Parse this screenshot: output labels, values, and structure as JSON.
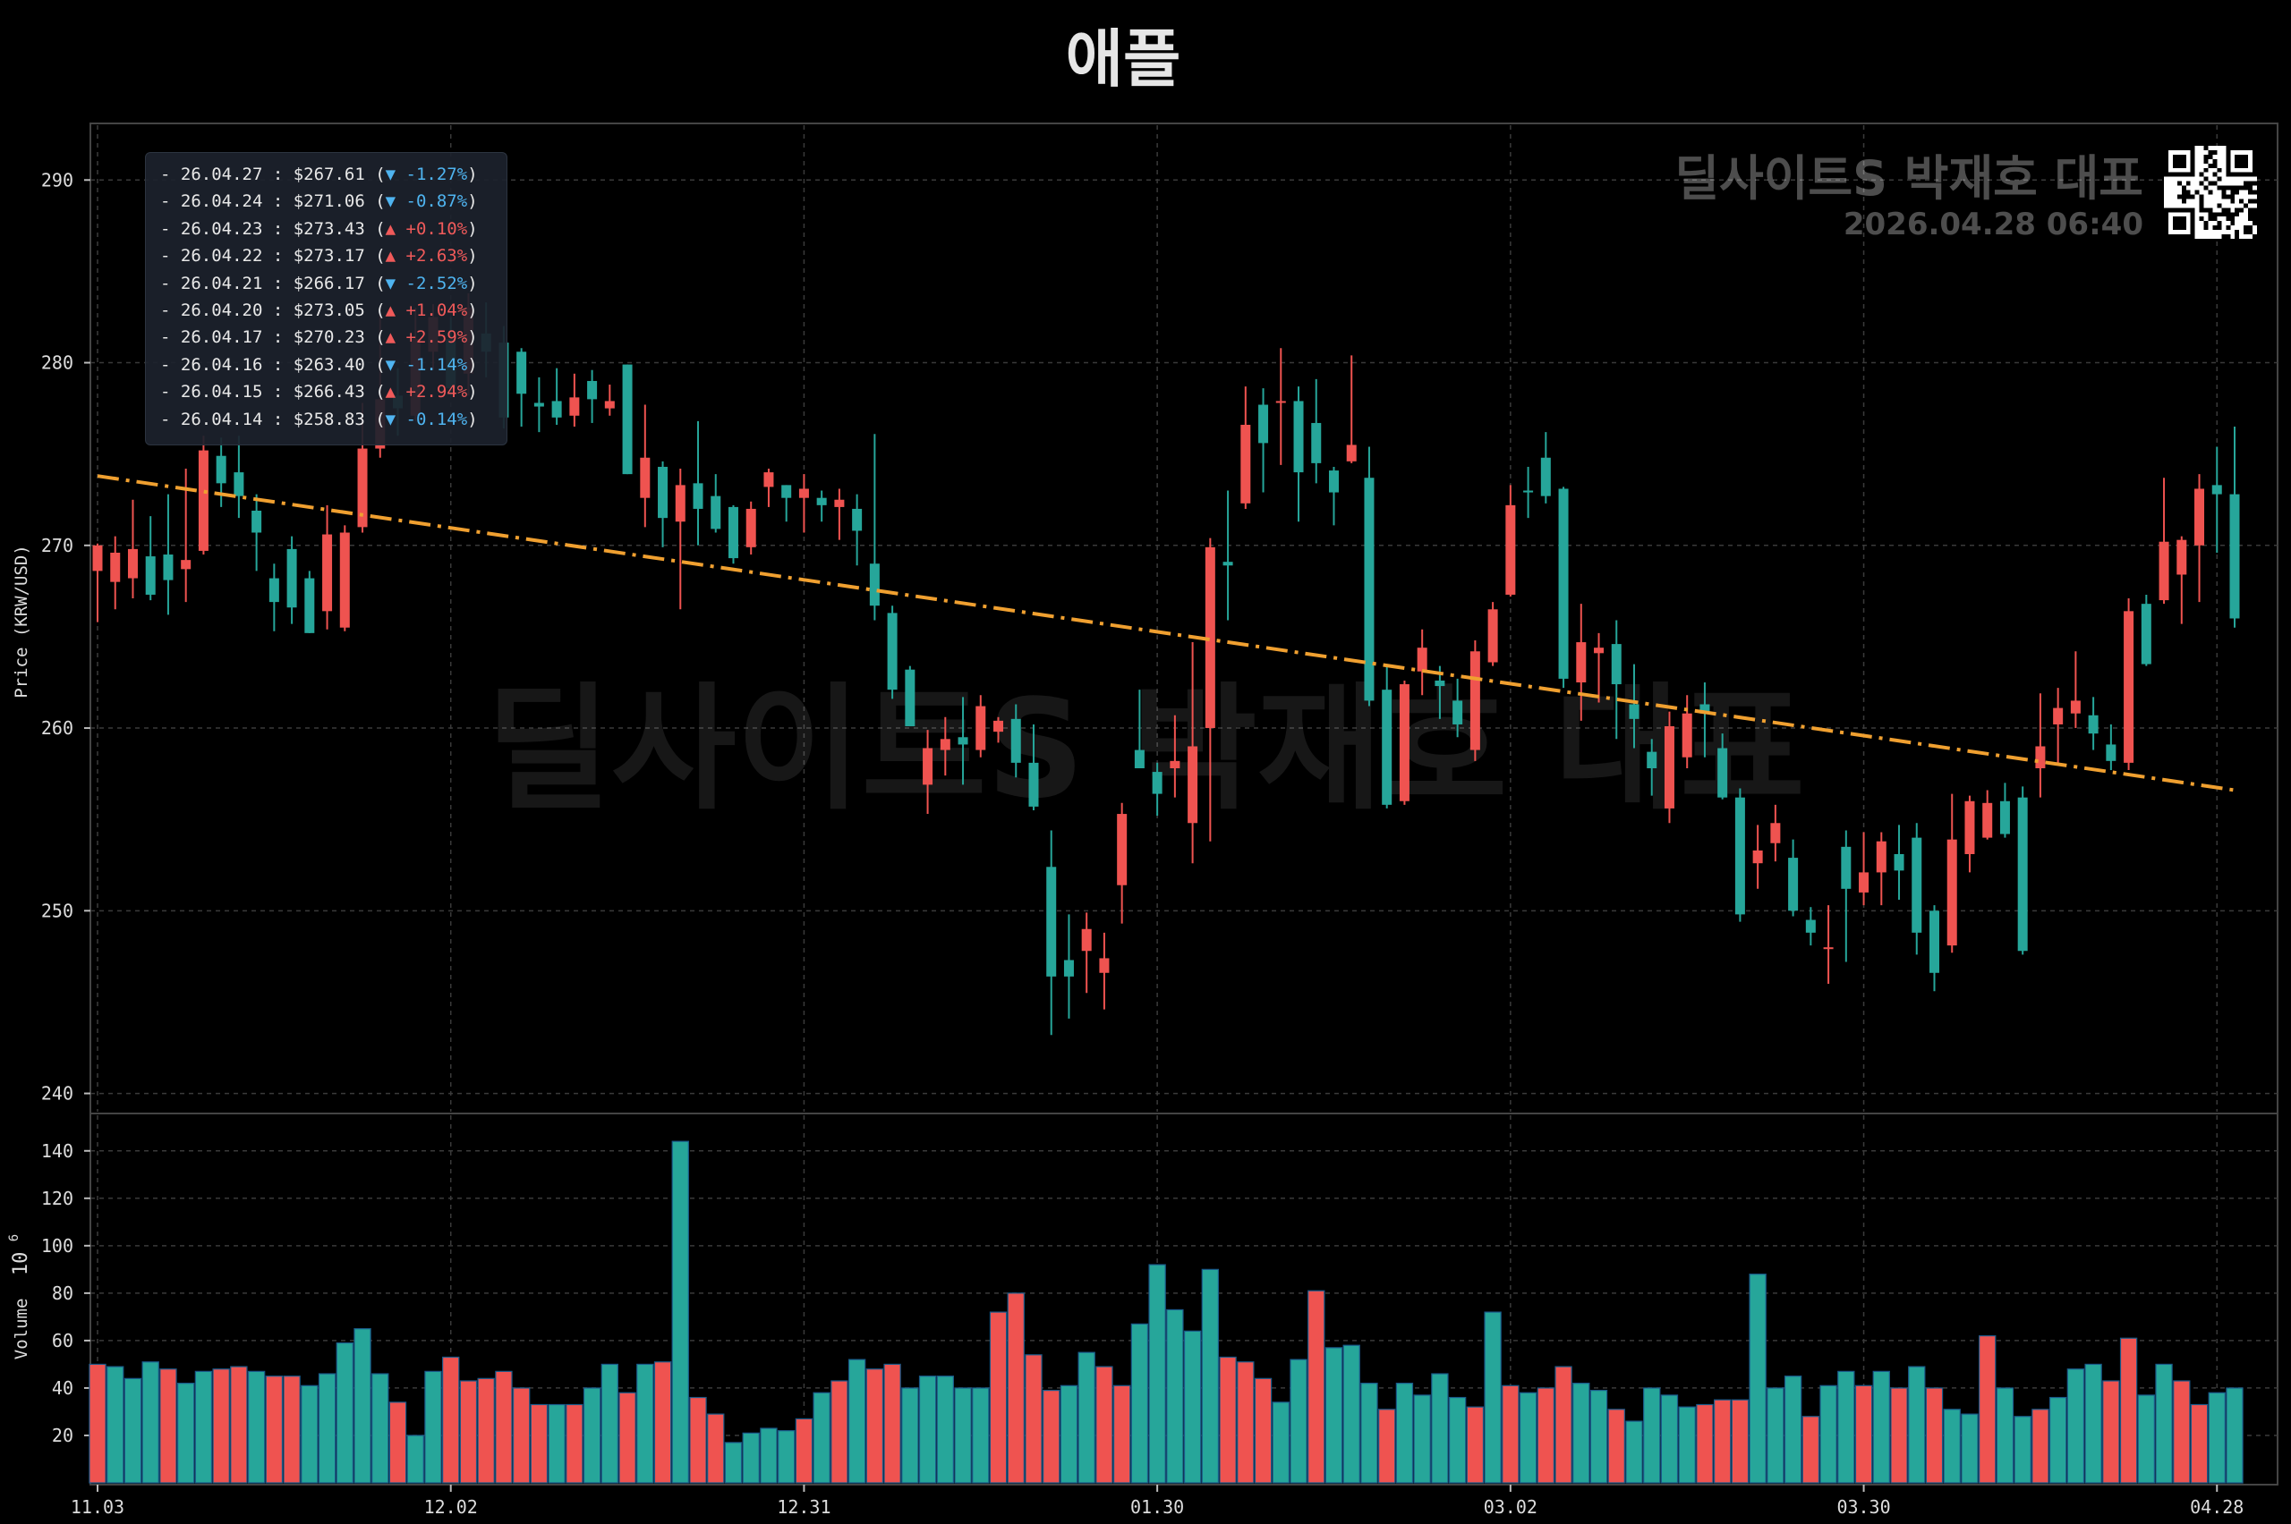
{
  "title": "애플",
  "watermark": {
    "center_text": "딜사이트S 박재호 대표",
    "corner_text": "딜사이트S 박재호 대표",
    "timestamp": "2026.04.28 06:40",
    "qr_icon": "qr-code-icon"
  },
  "colors": {
    "background": "#000000",
    "up": "#ef5350",
    "down": "#26a69a",
    "trend": "#f0a030",
    "grid": "#3a3a3a",
    "legend_up": "#f05a5a",
    "legend_down": "#4fb4f0"
  },
  "legend": [
    {
      "text": "- 26.04.27 : $267.61 (",
      "change": "▼ -1.27%",
      "dir": "down"
    },
    {
      "text": "- 26.04.24 : $271.06 (",
      "change": "▼ -0.87%",
      "dir": "down"
    },
    {
      "text": "- 26.04.23 : $273.43 (",
      "change": "▲ +0.10%",
      "dir": "up"
    },
    {
      "text": "- 26.04.22 : $273.17 (",
      "change": "▲ +2.63%",
      "dir": "up"
    },
    {
      "text": "- 26.04.21 : $266.17 (",
      "change": "▼ -2.52%",
      "dir": "down"
    },
    {
      "text": "- 26.04.20 : $273.05 (",
      "change": "▲ +1.04%",
      "dir": "up"
    },
    {
      "text": "- 26.04.17 : $270.23 (",
      "change": "▲ +2.59%",
      "dir": "up"
    },
    {
      "text": "- 26.04.16 : $263.40 (",
      "change": "▼ -1.14%",
      "dir": "down"
    },
    {
      "text": "- 26.04.15 : $266.43 (",
      "change": "▲ +2.94%",
      "dir": "up"
    },
    {
      "text": "- 26.04.14 : $258.83 (",
      "change": "▼ -0.14%",
      "dir": "down"
    }
  ],
  "chart_data": [
    {
      "type": "candlestick",
      "ylabel": "Price (KRW/USD)",
      "ylim": [
        239,
        293
      ],
      "yticks": [
        240,
        250,
        260,
        270,
        280,
        290
      ],
      "xtick_labels": [
        "11.03",
        "12.02",
        "12.31",
        "01.30",
        "03.02",
        "03.30",
        "04.28"
      ],
      "xtick_index": [
        0,
        20,
        40,
        60,
        80,
        100,
        120
      ],
      "trend_line": {
        "style": "dash-dot",
        "start": [
          0,
          273.8
        ],
        "end": [
          121,
          256.6
        ]
      },
      "grid": true,
      "candles": [
        [
          268.6,
          270.0,
          265.8,
          270.1
        ],
        [
          268.0,
          269.6,
          266.5,
          270.5
        ],
        [
          268.2,
          269.8,
          267.1,
          272.5
        ],
        [
          269.4,
          267.3,
          267.0,
          271.6
        ],
        [
          269.5,
          268.1,
          266.2,
          272.8
        ],
        [
          268.7,
          269.2,
          266.9,
          274.2
        ],
        [
          269.7,
          275.2,
          269.5,
          276.0
        ],
        [
          274.9,
          273.4,
          272.1,
          275.9
        ],
        [
          274.0,
          272.7,
          271.5,
          276.0
        ],
        [
          271.9,
          270.7,
          268.6,
          272.8
        ],
        [
          268.2,
          266.9,
          265.3,
          269.0
        ],
        [
          269.8,
          266.6,
          265.7,
          270.5
        ],
        [
          268.2,
          265.2,
          265.2,
          268.6
        ],
        [
          266.4,
          270.6,
          265.4,
          272.2
        ],
        [
          265.5,
          270.7,
          265.3,
          271.1
        ],
        [
          271.0,
          275.3,
          270.7,
          277.8
        ],
        [
          275.3,
          278.0,
          274.8,
          282.7
        ],
        [
          278.2,
          277.5,
          276.0,
          279.7
        ],
        [
          277.1,
          281.3,
          276.8,
          283.0
        ],
        [
          280.6,
          282.5,
          279.6,
          283.2
        ],
        [
          281.3,
          278.6,
          278.2,
          282.5
        ],
        [
          279.4,
          283.0,
          278.2,
          283.8
        ],
        [
          281.6,
          280.6,
          279.2,
          283.3
        ],
        [
          281.1,
          277.0,
          276.4,
          282.0
        ],
        [
          280.6,
          278.3,
          276.5,
          280.8
        ],
        [
          277.8,
          277.6,
          276.2,
          279.2
        ],
        [
          277.9,
          277.0,
          276.6,
          279.7
        ],
        [
          277.1,
          278.1,
          276.5,
          279.4
        ],
        [
          279.0,
          278.0,
          276.7,
          279.6
        ],
        [
          277.5,
          277.9,
          277.1,
          278.8
        ],
        [
          279.9,
          273.9,
          273.9,
          279.9
        ],
        [
          272.6,
          274.8,
          271.0,
          277.7
        ],
        [
          274.3,
          271.5,
          269.9,
          274.6
        ],
        [
          271.3,
          273.3,
          266.5,
          274.2
        ],
        [
          273.4,
          272.0,
          270.0,
          276.8
        ],
        [
          272.7,
          270.9,
          270.7,
          273.9
        ],
        [
          272.1,
          269.3,
          269.0,
          272.2
        ],
        [
          269.9,
          272.0,
          269.5,
          272.4
        ],
        [
          273.2,
          274.0,
          272.1,
          274.2
        ],
        [
          273.3,
          272.6,
          271.3,
          273.3
        ],
        [
          272.6,
          273.1,
          270.7,
          273.9
        ],
        [
          272.6,
          272.2,
          271.3,
          273.0
        ],
        [
          272.1,
          272.5,
          270.3,
          273.1
        ],
        [
          272.0,
          270.8,
          268.9,
          272.8
        ],
        [
          269.0,
          266.7,
          265.9,
          276.1
        ],
        [
          266.3,
          262.1,
          261.6,
          266.7
        ],
        [
          263.2,
          260.1,
          260.1,
          263.4
        ],
        [
          256.9,
          258.9,
          255.3,
          259.9
        ],
        [
          258.8,
          259.4,
          257.4,
          260.6
        ],
        [
          259.5,
          259.1,
          256.9,
          261.7
        ],
        [
          258.8,
          261.2,
          258.4,
          261.8
        ],
        [
          259.8,
          260.4,
          259.2,
          260.6
        ],
        [
          260.5,
          258.1,
          257.3,
          261.3
        ],
        [
          258.1,
          255.7,
          255.5,
          260.2
        ],
        [
          252.4,
          246.4,
          243.2,
          254.4
        ],
        [
          247.3,
          246.4,
          244.1,
          249.8
        ],
        [
          247.8,
          249.0,
          245.5,
          249.9
        ],
        [
          246.6,
          247.4,
          244.6,
          248.8
        ],
        [
          251.4,
          255.3,
          249.3,
          255.9
        ],
        [
          258.8,
          257.8,
          257.8,
          262.1
        ],
        [
          257.6,
          256.4,
          255.2,
          258.1
        ],
        [
          257.8,
          258.2,
          256.2,
          260.7
        ],
        [
          254.8,
          259.0,
          252.6,
          264.7
        ],
        [
          260.0,
          269.9,
          253.8,
          270.4
        ],
        [
          269.1,
          268.9,
          265.9,
          273.0
        ],
        [
          272.3,
          276.6,
          272.0,
          278.7
        ],
        [
          277.7,
          275.6,
          272.9,
          278.6
        ],
        [
          277.8,
          277.9,
          274.4,
          280.8
        ],
        [
          277.9,
          274.0,
          271.3,
          278.7
        ],
        [
          276.7,
          274.5,
          273.4,
          279.1
        ],
        [
          274.1,
          272.9,
          271.1,
          274.3
        ],
        [
          274.6,
          275.5,
          274.5,
          280.4
        ],
        [
          273.7,
          261.5,
          261.2,
          275.4
        ],
        [
          262.1,
          255.8,
          255.6,
          263.4
        ],
        [
          256.0,
          262.4,
          255.8,
          262.6
        ],
        [
          263.1,
          264.4,
          261.8,
          265.4
        ],
        [
          262.6,
          262.3,
          260.5,
          263.4
        ],
        [
          261.5,
          260.2,
          259.5,
          262.7
        ],
        [
          258.8,
          264.2,
          258.2,
          264.8
        ],
        [
          263.6,
          266.5,
          263.4,
          266.9
        ],
        [
          267.3,
          272.2,
          267.2,
          273.3
        ],
        [
          273.0,
          272.9,
          271.5,
          274.3
        ],
        [
          274.8,
          272.7,
          272.3,
          276.2
        ],
        [
          273.1,
          262.7,
          262.2,
          273.2
        ],
        [
          262.5,
          264.7,
          260.4,
          266.8
        ],
        [
          264.1,
          264.4,
          261.4,
          265.2
        ],
        [
          264.6,
          262.4,
          259.4,
          265.9
        ],
        [
          261.3,
          260.5,
          258.9,
          263.5
        ],
        [
          258.7,
          257.8,
          256.3,
          259.4
        ],
        [
          255.6,
          260.1,
          254.8,
          260.9
        ],
        [
          258.4,
          260.8,
          257.8,
          261.8
        ],
        [
          261.3,
          260.8,
          258.4,
          262.5
        ],
        [
          258.9,
          256.2,
          256.1,
          259.7
        ],
        [
          256.2,
          249.8,
          249.4,
          256.7
        ],
        [
          252.6,
          253.3,
          251.2,
          254.7
        ],
        [
          253.7,
          254.8,
          252.7,
          255.8
        ],
        [
          252.9,
          250.0,
          249.7,
          253.9
        ],
        [
          249.5,
          248.8,
          248.1,
          250.2
        ],
        [
          247.9,
          248.0,
          246.0,
          250.3
        ],
        [
          253.5,
          251.2,
          247.2,
          254.4
        ],
        [
          251.0,
          252.1,
          250.3,
          254.3
        ],
        [
          252.1,
          253.8,
          250.3,
          254.3
        ],
        [
          253.1,
          252.2,
          250.6,
          254.7
        ],
        [
          254.0,
          248.8,
          247.6,
          254.8
        ],
        [
          250.0,
          246.6,
          245.6,
          250.3
        ],
        [
          248.1,
          253.9,
          247.7,
          256.4
        ],
        [
          253.1,
          256.0,
          252.1,
          256.3
        ],
        [
          254.0,
          255.9,
          253.9,
          256.6
        ],
        [
          256.0,
          254.2,
          254.0,
          257.0
        ],
        [
          256.2,
          247.8,
          247.6,
          256.8
        ],
        [
          257.8,
          259.0,
          256.2,
          261.9
        ],
        [
          260.2,
          261.1,
          258.1,
          262.2
        ],
        [
          260.8,
          261.5,
          260.0,
          264.2
        ],
        [
          260.7,
          259.7,
          258.8,
          261.7
        ],
        [
          259.1,
          258.2,
          257.7,
          260.2
        ],
        [
          258.1,
          266.4,
          257.7,
          267.1
        ],
        [
          266.8,
          263.5,
          263.4,
          267.3
        ],
        [
          267.0,
          270.2,
          266.8,
          273.7
        ],
        [
          268.4,
          270.3,
          265.7,
          270.5
        ],
        [
          270.0,
          273.1,
          266.9,
          273.9
        ],
        [
          273.3,
          272.8,
          269.6,
          275.4
        ],
        [
          272.8,
          266.0,
          265.5,
          276.5
        ]
      ]
    },
    {
      "type": "bar",
      "ylabel": "Volume",
      "yunit": "10",
      "yunit_exp": "6",
      "ylim": [
        0,
        155
      ],
      "yticks": [
        20,
        40,
        60,
        80,
        100,
        120,
        140
      ],
      "values": [
        50,
        49,
        44,
        51,
        48,
        42,
        47,
        48,
        49,
        47,
        45,
        45,
        41,
        46,
        59,
        65,
        46,
        34,
        20,
        47,
        53,
        43,
        44,
        47,
        40,
        33,
        33,
        33,
        40,
        50,
        38,
        50,
        51,
        144,
        36,
        29,
        17,
        21,
        23,
        22,
        27,
        38,
        43,
        52,
        48,
        50,
        40,
        45,
        45,
        40,
        40,
        72,
        80,
        54,
        39,
        41,
        55,
        49,
        41,
        67,
        92,
        73,
        64,
        90,
        53,
        51,
        44,
        34,
        52,
        81,
        57,
        58,
        42,
        31,
        42,
        37,
        46,
        36,
        32,
        72,
        41,
        38,
        40,
        49,
        42,
        39,
        31,
        26,
        40,
        37,
        32,
        33,
        35,
        35,
        88,
        40,
        45,
        28,
        41,
        47,
        41,
        47,
        40,
        49,
        40,
        31,
        29,
        62,
        40,
        28,
        31,
        36,
        48,
        50,
        43,
        61,
        37,
        50,
        43,
        33,
        38,
        40
      ],
      "up": [
        true,
        false,
        false,
        false,
        true,
        false,
        false,
        true,
        true,
        false,
        true,
        true,
        false,
        false,
        false,
        false,
        false,
        true,
        false,
        false,
        true,
        true,
        true,
        true,
        true,
        true,
        false,
        true,
        false,
        false,
        true,
        false,
        true,
        false,
        true,
        true,
        false,
        false,
        false,
        false,
        true,
        false,
        true,
        false,
        true,
        true,
        false,
        false,
        false,
        false,
        false,
        true,
        true,
        true,
        true,
        false,
        false,
        true,
        true,
        false,
        false,
        false,
        false,
        false,
        true,
        true,
        true,
        false,
        false,
        true,
        false,
        false,
        false,
        true,
        false,
        false,
        false,
        false,
        true,
        false,
        true,
        false,
        true,
        true,
        false,
        false,
        true,
        false,
        false,
        false,
        false,
        true,
        true,
        true,
        false,
        false,
        false,
        true,
        false,
        false,
        true,
        false,
        true,
        false,
        true,
        false,
        false,
        true,
        false,
        false,
        true,
        false,
        false,
        false,
        true,
        true,
        false,
        false,
        true,
        true,
        false
      ]
    }
  ]
}
